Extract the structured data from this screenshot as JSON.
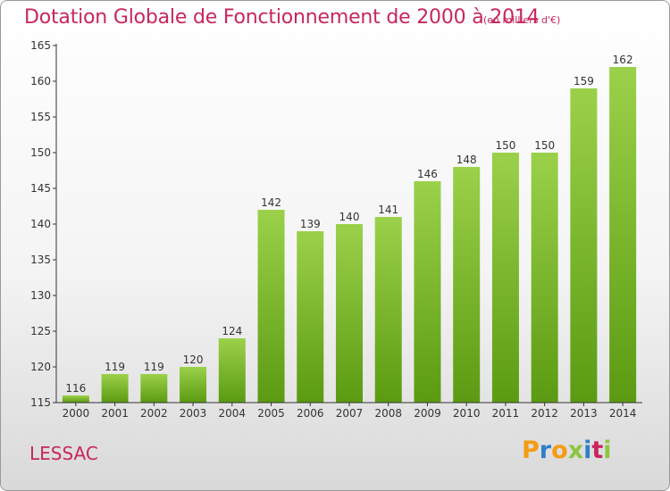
{
  "title": "Dotation Globale de Fonctionnement de 2000 à 2014",
  "unit": "(en milliers d'€)",
  "commune": "LESSAC",
  "logo": {
    "letters": [
      "P",
      "r",
      "o",
      "x",
      "i",
      "t",
      "i"
    ],
    "colors": [
      "#f39c12",
      "#2f80c8",
      "#f39c12",
      "#8dc63f",
      "#2f80c8",
      "#c8265e",
      "#8dc63f"
    ]
  },
  "colors": {
    "title": "#c8265e",
    "bar_top": "#9bd14a",
    "bar_bottom": "#5b9a12",
    "axis": "#333333"
  },
  "chart_data": {
    "type": "bar",
    "categories": [
      "2000",
      "2001",
      "2002",
      "2003",
      "2004",
      "2005",
      "2006",
      "2007",
      "2008",
      "2009",
      "2010",
      "2011",
      "2012",
      "2013",
      "2014"
    ],
    "values": [
      116,
      119,
      119,
      120,
      124,
      142,
      139,
      140,
      141,
      146,
      148,
      150,
      150,
      159,
      162
    ],
    "ylim": [
      115,
      165
    ],
    "yticks": [
      115,
      120,
      125,
      130,
      135,
      140,
      145,
      150,
      155,
      160,
      165
    ],
    "grid": false,
    "legend": "none"
  }
}
